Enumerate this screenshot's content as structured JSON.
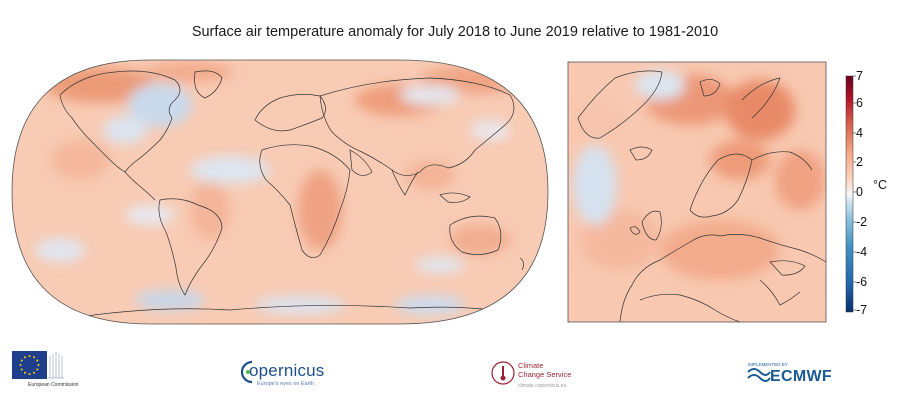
{
  "title": "Surface air temperature anomaly for July 2018 to June 2019 relative to 1981-2010",
  "colorbar": {
    "unit": "°C",
    "ticks": [
      "7",
      "6",
      "4",
      "2",
      "0",
      "-2",
      "-4",
      "-6",
      "-7"
    ],
    "range": [
      -7,
      7
    ],
    "colors": [
      "#08306b",
      "#2166ac",
      "#4393c3",
      "#92c5de",
      "#d1e5f0",
      "#f7f7f7",
      "#fddbc7",
      "#f4a582",
      "#d6604d",
      "#b2182b",
      "#67001f"
    ]
  },
  "palette": {
    "base_warm": "#f8c9b2",
    "warm": "#f2a584",
    "hot": "#e07a58",
    "cool": "#d7e4f1",
    "cold": "#b8cde4",
    "coast": "#333333"
  },
  "logos": {
    "eu": {
      "text": "European Commission",
      "icon": "eu-flag-icon"
    },
    "copernicus": {
      "text": "opernicus",
      "tagline": "Europe's eyes on Earth",
      "icon": "copernicus-c-icon"
    },
    "c3s": {
      "text_line1": "Climate",
      "text_line2": "Change Service",
      "url": "climate.copernicus.eu",
      "icon": "c3s-thermometer-icon"
    },
    "ecmwf": {
      "implemented_by": "IMPLEMENTED BY",
      "text": "ECMWF",
      "icon": "ecmwf-wave-icon"
    }
  }
}
